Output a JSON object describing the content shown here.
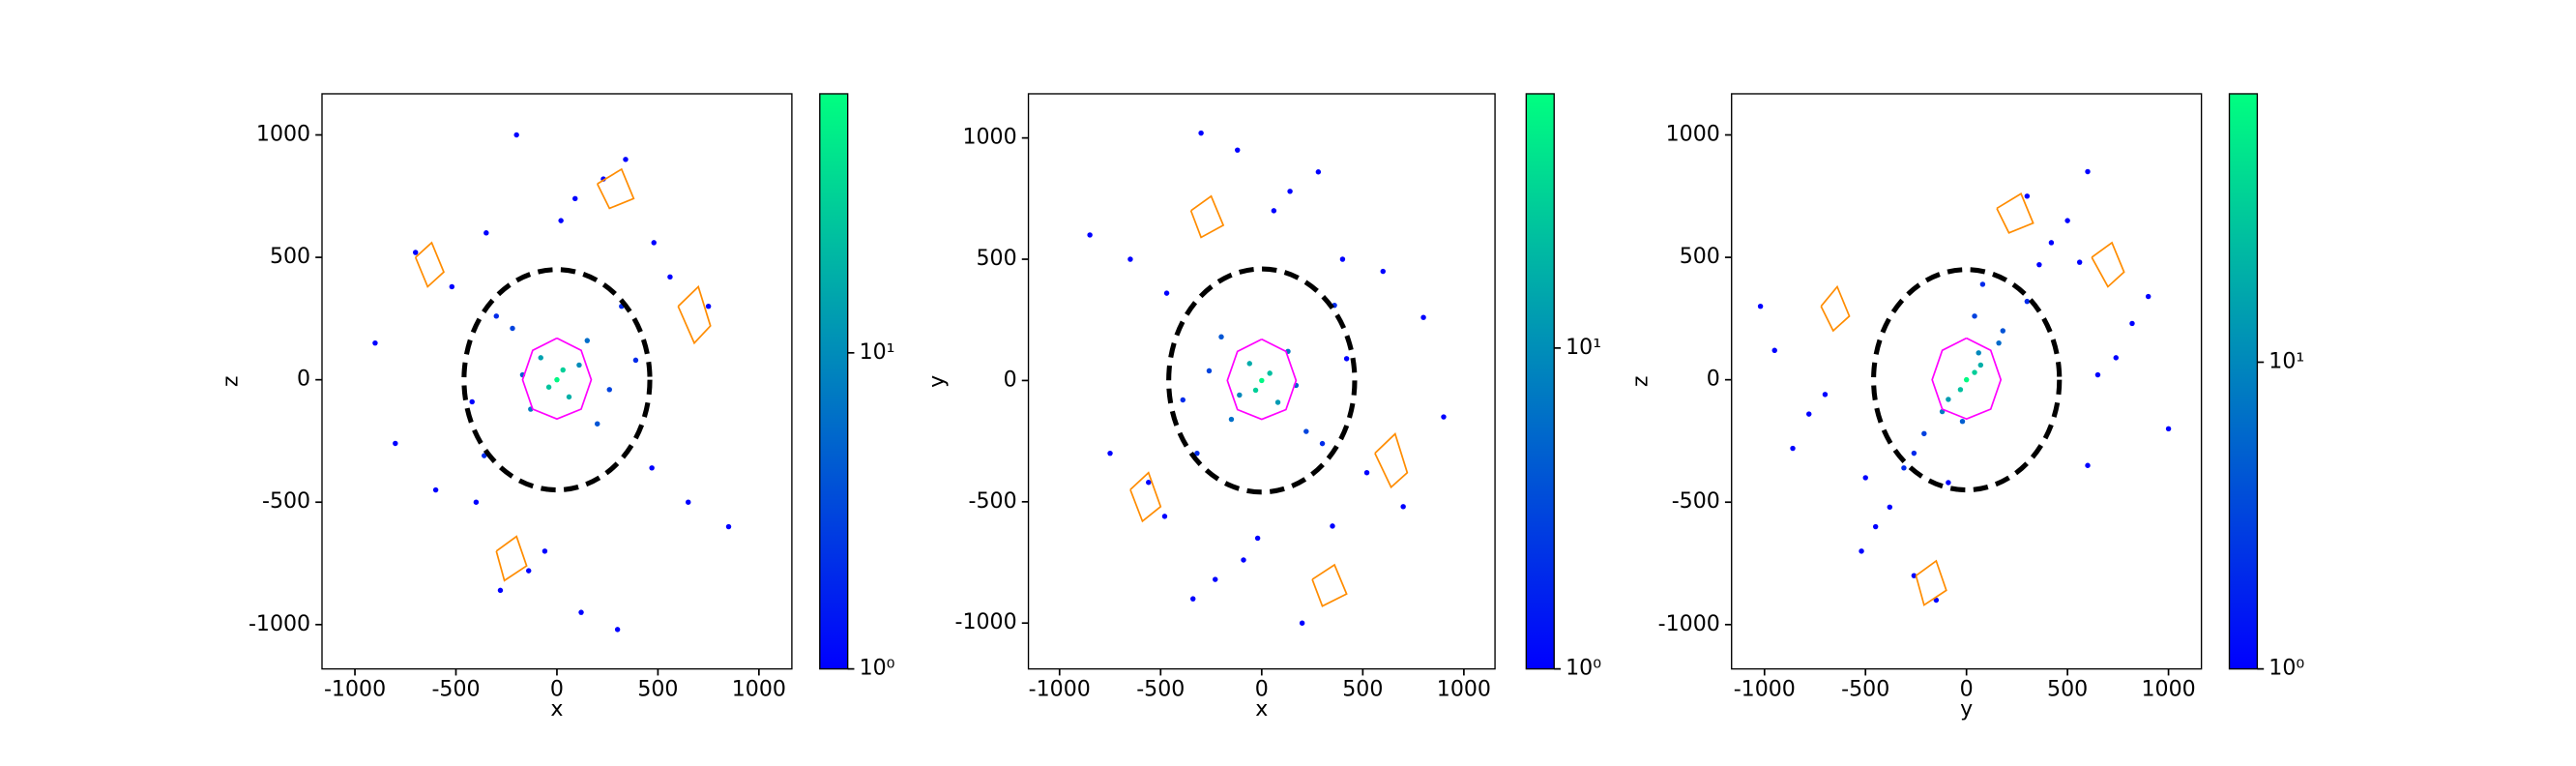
{
  "chart_data": [
    {
      "type": "scatter",
      "xlabel": "x",
      "ylabel": "z",
      "xlim": [
        -1163,
        1163
      ],
      "ylim": [
        -1181,
        1168
      ],
      "xticks": [
        -1000,
        -500,
        0,
        500,
        1000
      ],
      "yticks": [
        -1000,
        -500,
        0,
        500,
        1000
      ],
      "colorbar": {
        "lim": [
          1,
          66
        ],
        "log": true,
        "colors": [
          "#0000ff",
          "#00ff80"
        ],
        "ticks": [
          {
            "value": 1,
            "label": "10⁰"
          },
          {
            "value": 10,
            "label": "10¹"
          }
        ]
      },
      "series": [
        {
          "x": [
            0,
            30,
            -40,
            60,
            -80,
            110,
            -130,
            150,
            -170,
            200,
            -220,
            260,
            -300,
            320,
            -360,
            390,
            -420,
            470,
            -520,
            560,
            -600,
            650,
            -700,
            750,
            -800,
            850,
            -900,
            20,
            -60,
            90,
            -140,
            230,
            -280,
            340,
            -400,
            480,
            120,
            -200,
            300,
            -350
          ],
          "y": [
            0,
            40,
            -30,
            -70,
            90,
            60,
            -120,
            160,
            20,
            -180,
            210,
            -40,
            260,
            300,
            -310,
            80,
            -90,
            -360,
            380,
            420,
            -450,
            -500,
            520,
            300,
            -260,
            -600,
            150,
            650,
            -700,
            740,
            -780,
            820,
            -860,
            900,
            -500,
            560,
            -950,
            1000,
            -1020,
            600
          ],
          "c": [
            60,
            30,
            25,
            18,
            14,
            10,
            8,
            6,
            5,
            4,
            3,
            3,
            2,
            2,
            2,
            2,
            1,
            1,
            1,
            1,
            1,
            1,
            1,
            1,
            1,
            1,
            1,
            1,
            1,
            1,
            1,
            1,
            1,
            1,
            1,
            1,
            1,
            1,
            1,
            1
          ]
        }
      ],
      "contours": [
        {
          "color": "#ff00ff",
          "x": [
            0,
            120,
            170,
            120,
            0,
            -120,
            -170,
            -120,
            0
          ],
          "y": [
            170,
            120,
            0,
            -120,
            -160,
            -120,
            0,
            120,
            170
          ]
        },
        {
          "color": "#ff8c00",
          "x": [
            -700,
            -620,
            -560,
            -640,
            -700
          ],
          "y": [
            500,
            560,
            440,
            380,
            500
          ]
        },
        {
          "color": "#ff8c00",
          "x": [
            600,
            700,
            760,
            680,
            600
          ],
          "y": [
            300,
            380,
            220,
            150,
            300
          ]
        },
        {
          "color": "#ff8c00",
          "x": [
            -300,
            -200,
            -150,
            -260,
            -300
          ],
          "y": [
            -700,
            -640,
            -760,
            -820,
            -700
          ]
        },
        {
          "color": "#ff8c00",
          "x": [
            200,
            320,
            380,
            260,
            200
          ],
          "y": [
            800,
            860,
            740,
            700,
            800
          ]
        }
      ],
      "ellipse": {
        "cx": 0,
        "cy": 0,
        "rx": 460,
        "ry": 450,
        "color": "#000000"
      }
    },
    {
      "type": "scatter",
      "xlabel": "x",
      "ylabel": "y",
      "xlim": [
        -1154,
        1154
      ],
      "ylim": [
        -1189,
        1182
      ],
      "xticks": [
        -1000,
        -500,
        0,
        500,
        1000
      ],
      "yticks": [
        -1000,
        -500,
        0,
        500,
        1000
      ],
      "colorbar": {
        "lim": [
          1,
          62
        ],
        "log": true,
        "colors": [
          "#0000ff",
          "#00ff80"
        ],
        "ticks": [
          {
            "value": 1,
            "label": "10⁰"
          },
          {
            "value": 10,
            "label": "10¹"
          }
        ]
      },
      "series": [
        {
          "x": [
            0,
            -30,
            40,
            -60,
            80,
            -110,
            130,
            -150,
            170,
            -200,
            220,
            -260,
            300,
            -320,
            360,
            -390,
            420,
            -470,
            520,
            -560,
            600,
            -650,
            700,
            -750,
            800,
            -850,
            900,
            -20,
            60,
            -90,
            140,
            -230,
            280,
            -340,
            400,
            -480,
            -120,
            200,
            -300,
            350
          ],
          "y": [
            0,
            -40,
            30,
            70,
            -90,
            -60,
            120,
            -160,
            -20,
            180,
            -210,
            40,
            -260,
            -300,
            310,
            -80,
            90,
            360,
            -380,
            -420,
            450,
            500,
            -520,
            -300,
            260,
            600,
            -150,
            -650,
            700,
            -740,
            780,
            -820,
            860,
            -900,
            500,
            -560,
            950,
            -1000,
            1020,
            -600
          ],
          "c": [
            55,
            28,
            22,
            16,
            12,
            9,
            7,
            6,
            5,
            4,
            3,
            3,
            2,
            2,
            2,
            2,
            1,
            1,
            1,
            1,
            1,
            1,
            1,
            1,
            1,
            1,
            1,
            1,
            1,
            1,
            1,
            1,
            1,
            1,
            1,
            1,
            1,
            1,
            1,
            1
          ]
        }
      ],
      "contours": [
        {
          "color": "#ff00ff",
          "x": [
            0,
            120,
            170,
            120,
            0,
            -120,
            -170,
            -120,
            0
          ],
          "y": [
            170,
            120,
            0,
            -120,
            -160,
            -120,
            0,
            120,
            170
          ]
        },
        {
          "color": "#ff8c00",
          "x": [
            -650,
            -560,
            -500,
            -590,
            -650
          ],
          "y": [
            -450,
            -380,
            -520,
            -580,
            -450
          ]
        },
        {
          "color": "#ff8c00",
          "x": [
            560,
            660,
            720,
            640,
            560
          ],
          "y": [
            -300,
            -220,
            -380,
            -440,
            -300
          ]
        },
        {
          "color": "#ff8c00",
          "x": [
            -350,
            -250,
            -190,
            -300,
            -350
          ],
          "y": [
            700,
            760,
            640,
            590,
            700
          ]
        },
        {
          "color": "#ff8c00",
          "x": [
            250,
            360,
            420,
            300,
            250
          ],
          "y": [
            -820,
            -760,
            -880,
            -930,
            -820
          ]
        }
      ],
      "ellipse": {
        "cx": 0,
        "cy": 0,
        "rx": 460,
        "ry": 460,
        "color": "#000000"
      }
    },
    {
      "type": "scatter",
      "xlabel": "y",
      "ylabel": "z",
      "xlim": [
        -1163,
        1163
      ],
      "ylim": [
        -1181,
        1168
      ],
      "xticks": [
        -1000,
        -500,
        0,
        500,
        1000
      ],
      "yticks": [
        -1000,
        -500,
        0,
        500,
        1000
      ],
      "colorbar": {
        "lim": [
          1,
          75
        ],
        "log": true,
        "colors": [
          "#0000ff",
          "#00ff80"
        ],
        "ticks": [
          {
            "value": 1,
            "label": "10⁰"
          },
          {
            "value": 10,
            "label": "10¹"
          }
        ]
      },
      "series": [
        {
          "x": [
            0,
            40,
            -30,
            70,
            -90,
            60,
            -120,
            160,
            -20,
            180,
            -210,
            40,
            -260,
            300,
            -310,
            80,
            -90,
            360,
            -380,
            420,
            -450,
            500,
            -520,
            300,
            -260,
            600,
            -150,
            650,
            -700,
            740,
            -780,
            820,
            -860,
            900,
            -500,
            560,
            -950,
            1000,
            -1020,
            600
          ],
          "y": [
            0,
            30,
            -40,
            60,
            -80,
            110,
            -130,
            150,
            -170,
            200,
            -220,
            260,
            -300,
            320,
            -360,
            390,
            -420,
            470,
            -520,
            560,
            -600,
            650,
            -700,
            750,
            -800,
            850,
            -900,
            20,
            -60,
            90,
            -140,
            230,
            -280,
            340,
            -400,
            480,
            120,
            -200,
            300,
            -350
          ],
          "c": [
            70,
            32,
            26,
            19,
            14,
            10,
            8,
            6,
            5,
            4,
            3,
            3,
            2,
            2,
            2,
            2,
            1,
            1,
            1,
            1,
            1,
            1,
            1,
            1,
            1,
            1,
            1,
            1,
            1,
            1,
            1,
            1,
            1,
            1,
            1,
            1,
            1,
            1,
            1,
            1
          ]
        }
      ],
      "contours": [
        {
          "color": "#ff00ff",
          "x": [
            0,
            120,
            170,
            120,
            0,
            -120,
            -170,
            -120,
            0
          ],
          "y": [
            170,
            120,
            0,
            -120,
            -160,
            -120,
            0,
            120,
            170
          ]
        },
        {
          "color": "#ff8c00",
          "x": [
            -720,
            -640,
            -580,
            -660,
            -720
          ],
          "y": [
            300,
            380,
            260,
            200,
            300
          ]
        },
        {
          "color": "#ff8c00",
          "x": [
            620,
            720,
            780,
            700,
            620
          ],
          "y": [
            500,
            560,
            440,
            380,
            500
          ]
        },
        {
          "color": "#ff8c00",
          "x": [
            -250,
            -150,
            -100,
            -210,
            -250
          ],
          "y": [
            -800,
            -740,
            -860,
            -920,
            -800
          ]
        },
        {
          "color": "#ff8c00",
          "x": [
            150,
            270,
            330,
            210,
            150
          ],
          "y": [
            700,
            760,
            640,
            600,
            700
          ]
        }
      ],
      "ellipse": {
        "cx": 0,
        "cy": 0,
        "rx": 460,
        "ry": 450,
        "color": "#000000"
      }
    }
  ]
}
